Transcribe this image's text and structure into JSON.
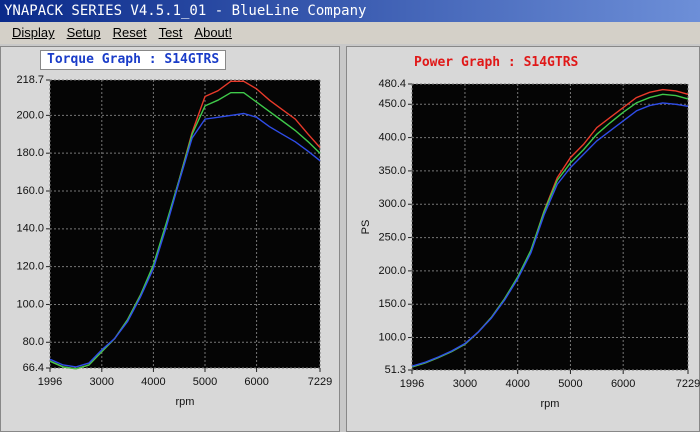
{
  "window_title": "YNAPACK SERIES V4.5.1_01  -  BlueLine Company",
  "menu": [
    "Display",
    "Setup",
    "Reset",
    "Test",
    "About!"
  ],
  "chart_data": [
    {
      "type": "line",
      "title": "Torque Graph  :  S14GTRS",
      "xlabel": "rpm",
      "grid": true,
      "x": [
        1996,
        2250,
        2500,
        2750,
        3000,
        3250,
        3500,
        3750,
        4000,
        4250,
        4500,
        4750,
        5000,
        5250,
        5500,
        5750,
        6000,
        6250,
        6500,
        6750,
        7000,
        7229
      ],
      "xlim": [
        1996,
        7229
      ],
      "xticks": [
        1996,
        3000,
        4000,
        5000,
        6000,
        7229
      ],
      "ylim": [
        66.4,
        218.7
      ],
      "yticks": [
        66.4,
        {
          "value": 80,
          "label": "80.0"
        },
        {
          "value": 100,
          "label": "100.0"
        },
        {
          "value": 120,
          "label": "120.0"
        },
        {
          "value": 140,
          "label": "140.0"
        },
        {
          "value": 160,
          "label": "160.0"
        },
        {
          "value": 180,
          "label": "180.0"
        },
        {
          "value": 200,
          "label": "200.0"
        },
        218.7
      ],
      "series": [
        {
          "color": "#e83a2a",
          "values": [
            70,
            67,
            66,
            68,
            75,
            82,
            92,
            105,
            120,
            142,
            166,
            191,
            210,
            213,
            218,
            218,
            214,
            208,
            203,
            198,
            190,
            183
          ]
        },
        {
          "color": "#3fc94a",
          "values": [
            70,
            67,
            66,
            68,
            75,
            82,
            92,
            105,
            121,
            143,
            166,
            190,
            205,
            208,
            212,
            212,
            207,
            202,
            197,
            192,
            186,
            180
          ]
        },
        {
          "color": "#2f4de8",
          "values": [
            71,
            68,
            67,
            69,
            76,
            82,
            91,
            104,
            119,
            141,
            165,
            188,
            198,
            199,
            200,
            201,
            199,
            194,
            190,
            186,
            181,
            176
          ]
        }
      ]
    },
    {
      "type": "line",
      "title": "Power Graph  :  S14GTRS",
      "xlabel": "rpm",
      "ylabel": "PS",
      "grid": true,
      "x": [
        1996,
        2250,
        2500,
        2750,
        3000,
        3250,
        3500,
        3750,
        4000,
        4250,
        4500,
        4750,
        5000,
        5250,
        5500,
        5750,
        6000,
        6250,
        6500,
        6750,
        7000,
        7229
      ],
      "xlim": [
        1996,
        7229
      ],
      "xticks": [
        1996,
        3000,
        4000,
        5000,
        6000,
        7229
      ],
      "ylim": [
        51.3,
        480.4
      ],
      "yticks": [
        51.3,
        {
          "value": 100,
          "label": "100.0"
        },
        {
          "value": 150,
          "label": "150.0"
        },
        {
          "value": 200,
          "label": "200.0"
        },
        {
          "value": 250,
          "label": "250.0"
        },
        {
          "value": 300,
          "label": "300.0"
        },
        {
          "value": 350,
          "label": "350.0"
        },
        {
          "value": 400,
          "label": "400.0"
        },
        {
          "value": 450,
          "label": "450.0"
        },
        480.4
      ],
      "series": [
        {
          "color": "#e83a2a",
          "values": [
            56,
            62,
            70,
            79,
            90,
            108,
            130,
            158,
            190,
            230,
            290,
            340,
            370,
            390,
            415,
            430,
            445,
            460,
            468,
            472,
            470,
            465
          ]
        },
        {
          "color": "#3fc94a",
          "values": [
            56,
            62,
            70,
            79,
            90,
            108,
            130,
            158,
            191,
            231,
            289,
            336,
            362,
            382,
            405,
            422,
            438,
            452,
            460,
            465,
            463,
            458
          ]
        },
        {
          "color": "#2f4de8",
          "values": [
            57,
            63,
            71,
            80,
            91,
            108,
            129,
            156,
            188,
            227,
            284,
            330,
            355,
            375,
            395,
            410,
            425,
            440,
            448,
            452,
            450,
            447
          ]
        }
      ]
    }
  ]
}
